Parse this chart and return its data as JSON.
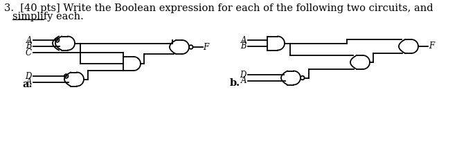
{
  "title_line1": "3.  [40 pts] Write the Boolean expression for each of the following two circuits, and",
  "title_line2": "simplify each.",
  "label_a": "a.",
  "label_b": "b.",
  "bg_color": "#ffffff",
  "text_color": "#000000",
  "lw": 1.3,
  "font_title": 10.5,
  "font_gate": 8.5
}
